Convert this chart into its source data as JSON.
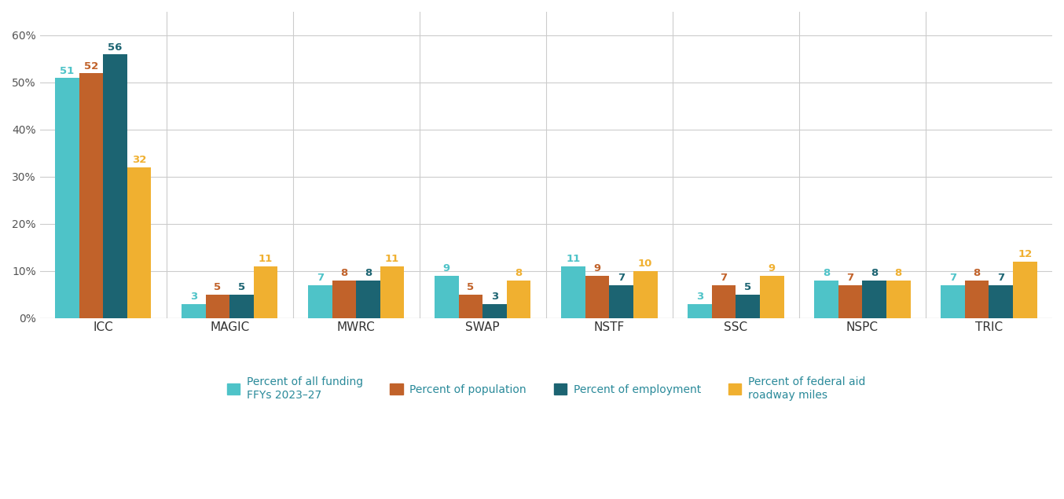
{
  "categories": [
    "ICC",
    "MAGIC",
    "MWRC",
    "SWAP",
    "NSTF",
    "SSC",
    "NSPC",
    "TRIC"
  ],
  "series": {
    "Percent of all funding\nFFYs 2023–27": [
      51,
      3,
      7,
      9,
      11,
      3,
      8,
      7
    ],
    "Percent of population": [
      52,
      5,
      8,
      5,
      9,
      7,
      7,
      8
    ],
    "Percent of employment": [
      56,
      5,
      8,
      3,
      7,
      5,
      8,
      7
    ],
    "Percent of federal aid\nroadway miles": [
      32,
      11,
      11,
      8,
      10,
      9,
      8,
      12
    ]
  },
  "colors": {
    "Percent of all funding\nFFYs 2023–27": "#4EC3C8",
    "Percent of population": "#C1622A",
    "Percent of employment": "#1C6472",
    "Percent of federal aid\nroadway miles": "#F0B030"
  },
  "label_colors": {
    "Percent of all funding\nFFYs 2023–27": "#4EC3C8",
    "Percent of population": "#C1622A",
    "Percent of employment": "#1C6472",
    "Percent of federal aid\nroadway miles": "#F0B030"
  },
  "ylim": [
    0,
    65
  ],
  "yticks": [
    0,
    10,
    20,
    30,
    40,
    50,
    60
  ],
  "yticklabels": [
    "0%",
    "10%",
    "20%",
    "30%",
    "40%",
    "50%",
    "60%"
  ],
  "grid_color": "#CCCCCC",
  "background_color": "#FFFFFF",
  "label_fontsize": 9.5,
  "axis_fontsize": 10,
  "legend_fontsize": 10,
  "legend_text_color": "#2A8A9A",
  "bar_width": 0.19,
  "tick_label_color": "#555555",
  "xticklabel_color": "#333333"
}
